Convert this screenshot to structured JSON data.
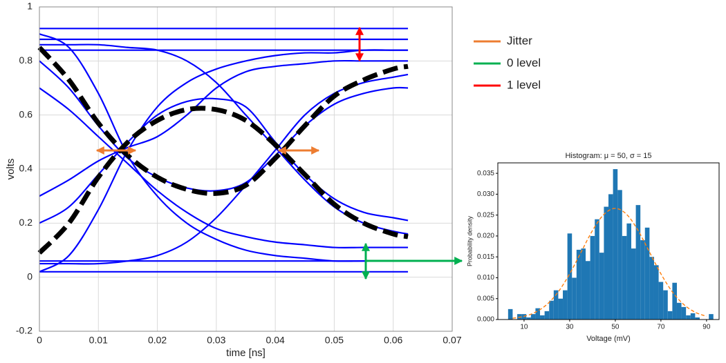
{
  "chart_data": [
    {
      "type": "line",
      "xlabel": "time [ns]",
      "ylabel": "volts",
      "xlim": [
        0,
        0.07
      ],
      "xticks": [
        0,
        0.01,
        0.02,
        0.03,
        0.04,
        0.05,
        0.06,
        0.07
      ],
      "ylim": [
        -0.2,
        1
      ],
      "yticks": [
        -0.2,
        0,
        0.2,
        0.4,
        0.6,
        0.8,
        1
      ],
      "grid": true,
      "x": [
        0,
        0.005,
        0.01,
        0.015,
        0.02,
        0.025,
        0.03,
        0.035,
        0.04,
        0.045,
        0.05,
        0.055,
        0.06,
        0.0625
      ],
      "series": [
        {
          "color": "#0000ff",
          "values": [
            0.92,
            0.92,
            0.92,
            0.92,
            0.92,
            0.92,
            0.92,
            0.92,
            0.92,
            0.92,
            0.92,
            0.92,
            0.92,
            0.92
          ]
        },
        {
          "color": "#0000ff",
          "values": [
            0.88,
            0.88,
            0.88,
            0.88,
            0.88,
            0.88,
            0.88,
            0.88,
            0.88,
            0.88,
            0.88,
            0.88,
            0.88,
            0.88
          ]
        },
        {
          "color": "#0000ff",
          "values": [
            0.84,
            0.84,
            0.84,
            0.84,
            0.84,
            0.84,
            0.84,
            0.84,
            0.84,
            0.84,
            0.84,
            0.84,
            0.84,
            0.84
          ]
        },
        {
          "color": "#0000ff",
          "values": [
            0.06,
            0.06,
            0.06,
            0.06,
            0.06,
            0.06,
            0.06,
            0.06,
            0.06,
            0.06,
            0.06,
            0.06,
            0.06,
            0.06
          ]
        },
        {
          "color": "#0000ff",
          "values": [
            0.02,
            0.02,
            0.02,
            0.02,
            0.02,
            0.02,
            0.02,
            0.02,
            0.02,
            0.02,
            0.02,
            0.02,
            0.02,
            0.02
          ]
        },
        {
          "color": "#0000ff",
          "values": [
            0.9,
            0.85,
            0.68,
            0.45,
            0.3,
            0.2,
            0.14,
            0.1,
            0.08,
            0.07,
            0.06,
            0.06,
            0.06,
            0.06
          ]
        },
        {
          "color": "#0000ff",
          "values": [
            0.02,
            0.08,
            0.25,
            0.47,
            0.63,
            0.72,
            0.77,
            0.8,
            0.82,
            0.83,
            0.83,
            0.84,
            0.84,
            0.84
          ]
        },
        {
          "color": "#0000ff",
          "values": [
            0.86,
            0.86,
            0.86,
            0.85,
            0.84,
            0.8,
            0.72,
            0.6,
            0.48,
            0.36,
            0.26,
            0.2,
            0.17,
            0.16
          ]
        },
        {
          "color": "#0000ff",
          "values": [
            0.05,
            0.05,
            0.05,
            0.06,
            0.08,
            0.13,
            0.22,
            0.34,
            0.47,
            0.6,
            0.68,
            0.72,
            0.74,
            0.75
          ]
        },
        {
          "color": "#0000ff",
          "values": [
            0.8,
            0.7,
            0.56,
            0.44,
            0.37,
            0.33,
            0.32,
            0.35,
            0.45,
            0.56,
            0.64,
            0.68,
            0.7,
            0.7
          ]
        },
        {
          "color": "#0000ff",
          "values": [
            0.2,
            0.26,
            0.38,
            0.5,
            0.6,
            0.65,
            0.66,
            0.63,
            0.5,
            0.38,
            0.29,
            0.24,
            0.22,
            0.21
          ]
        },
        {
          "color": "#0000ff",
          "values": [
            0.7,
            0.62,
            0.52,
            0.42,
            0.32,
            0.24,
            0.18,
            0.15,
            0.13,
            0.12,
            0.11,
            0.11,
            0.11,
            0.11
          ]
        },
        {
          "color": "#0000ff",
          "values": [
            0.3,
            0.36,
            0.43,
            0.48,
            0.52,
            0.6,
            0.7,
            0.76,
            0.78,
            0.79,
            0.8,
            0.8,
            0.8,
            0.8
          ]
        },
        {
          "color": "#000000",
          "dashed": true,
          "values": [
            0.85,
            0.73,
            0.57,
            0.45,
            0.37,
            0.325,
            0.31,
            0.34,
            0.44,
            0.56,
            0.67,
            0.73,
            0.77,
            0.78
          ]
        },
        {
          "color": "#000000",
          "dashed": true,
          "values": [
            0.09,
            0.2,
            0.37,
            0.5,
            0.58,
            0.62,
            0.62,
            0.58,
            0.49,
            0.38,
            0.27,
            0.2,
            0.16,
            0.15
          ]
        }
      ],
      "legend": [
        {
          "name": "Jitter",
          "color": "#ed7d31"
        },
        {
          "name": "0 level",
          "color": "#00b050"
        },
        {
          "name": "1 level",
          "color": "#ff0000"
        }
      ]
    },
    {
      "type": "histogram",
      "title": "Histogram: μ = 50, σ = 15",
      "xlabel": "Voltage (mV)",
      "ylabel": "Probability density",
      "xlim": [
        -1.5,
        95.5
      ],
      "xticks": [
        10,
        30,
        50,
        70,
        90
      ],
      "ylim": [
        0,
        0.0375
      ],
      "yticks": [
        {
          "value": 0,
          "label": "0.000"
        },
        {
          "value": 0.005,
          "label": "0.005"
        },
        {
          "value": 0.01,
          "label": "0.010"
        },
        {
          "value": 0.015,
          "label": "0.015"
        },
        {
          "value": 0.02,
          "label": "0.020"
        },
        {
          "value": 0.025,
          "label": "0.025"
        },
        {
          "value": 0.03,
          "label": "0.030"
        },
        {
          "value": 0.035,
          "label": "0.035"
        }
      ],
      "grid": false,
      "color": "#1f77b4",
      "bins": [
        3,
        5,
        7,
        9,
        11,
        13,
        15,
        17,
        19,
        21,
        23,
        25,
        27,
        29,
        31,
        33,
        35,
        37,
        39,
        41,
        43,
        45,
        47,
        49,
        51,
        53,
        55,
        57,
        59,
        61,
        63,
        65,
        67,
        69,
        71,
        73,
        75,
        77,
        79,
        81,
        83,
        85,
        87,
        89,
        91,
        93
      ],
      "values": [
        0.0025,
        0,
        0.0013,
        0.0013,
        0.0005,
        0.0013,
        0.0027,
        0.001,
        0.002,
        0.0045,
        0.007,
        0.005,
        0.007,
        0.0206,
        0.01,
        0.0167,
        0.017,
        0.014,
        0.02,
        0.024,
        0.016,
        0.027,
        0.03,
        0.036,
        0.031,
        0.02,
        0.023,
        0.017,
        0.0274,
        0.019,
        0.022,
        0.015,
        0.013,
        0.009,
        0.007,
        0.002,
        0.0088,
        0.004,
        0.003,
        0.001,
        0.0015,
        0.0005,
        0,
        0,
        0.0013
      ],
      "curve": {
        "color": "#ff7f0e",
        "x": [
          5,
          10,
          15,
          20,
          25,
          30,
          35,
          40,
          45,
          50,
          55,
          60,
          65,
          70,
          75,
          80,
          85,
          90
        ],
        "values": [
          0.0003,
          0.00076,
          0.00175,
          0.0036,
          0.00663,
          0.01094,
          0.01613,
          0.0213,
          0.02516,
          0.0266,
          0.02516,
          0.0213,
          0.01613,
          0.01094,
          0.00663,
          0.0036,
          0.00175,
          0.00076
        ]
      }
    }
  ]
}
